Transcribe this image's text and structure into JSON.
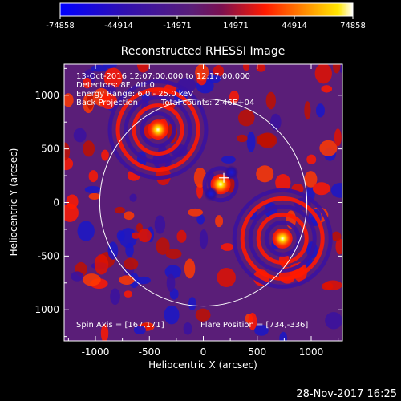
{
  "chart_data": {
    "type": "heatmap",
    "title": "Reconstructed RHESSI Image",
    "xlabel": "Heliocentric X (arcsec)",
    "ylabel": "Heliocentric Y (arcsec)",
    "xlim": [
      -1290,
      1290
    ],
    "ylim": [
      -1290,
      1290
    ],
    "x_ticks": [
      -1000,
      -500,
      0,
      500,
      1000
    ],
    "y_ticks": [
      -1000,
      -500,
      0,
      500,
      1000
    ],
    "colorbar": {
      "ticks": [
        "-74858",
        "-44914",
        "-14971",
        "14971",
        "44914",
        "74858"
      ],
      "range": [
        -74858,
        74858
      ]
    },
    "annotations": {
      "line1": "13-Oct-2016 12:07:00.000 to 12:17:00.000",
      "line2": "Detectors: 8F, Att 0",
      "line3": "Energy Range: 6.0 - 25.0 keV",
      "line4": "Back Projection",
      "line4b": "Total counts: 2.46E+04",
      "spin_axis": "Spin Axis = [167,171]",
      "flare_position": "Flare Position = [734,-336]"
    },
    "solar_limb_radius": 960,
    "sources": [
      {
        "x": 734,
        "y": -336,
        "kind": "positive"
      },
      {
        "x": -420,
        "y": 680,
        "kind": "positive"
      },
      {
        "x": 160,
        "y": 170,
        "kind": "positive"
      },
      {
        "x": 260,
        "y": 280,
        "kind": "negative"
      },
      {
        "x": 70,
        "y": 80,
        "kind": "negative"
      }
    ],
    "marker": {
      "x": 190,
      "y": 230
    }
  },
  "footer": {
    "date": "28-Nov-2017 16:25"
  },
  "colors": {
    "cb_blue": "#0000ff",
    "cb_purple": "#5a1e78",
    "cb_red": "#ff1a00",
    "cb_yellow": "#ffe600",
    "cb_white": "#ffffff"
  }
}
